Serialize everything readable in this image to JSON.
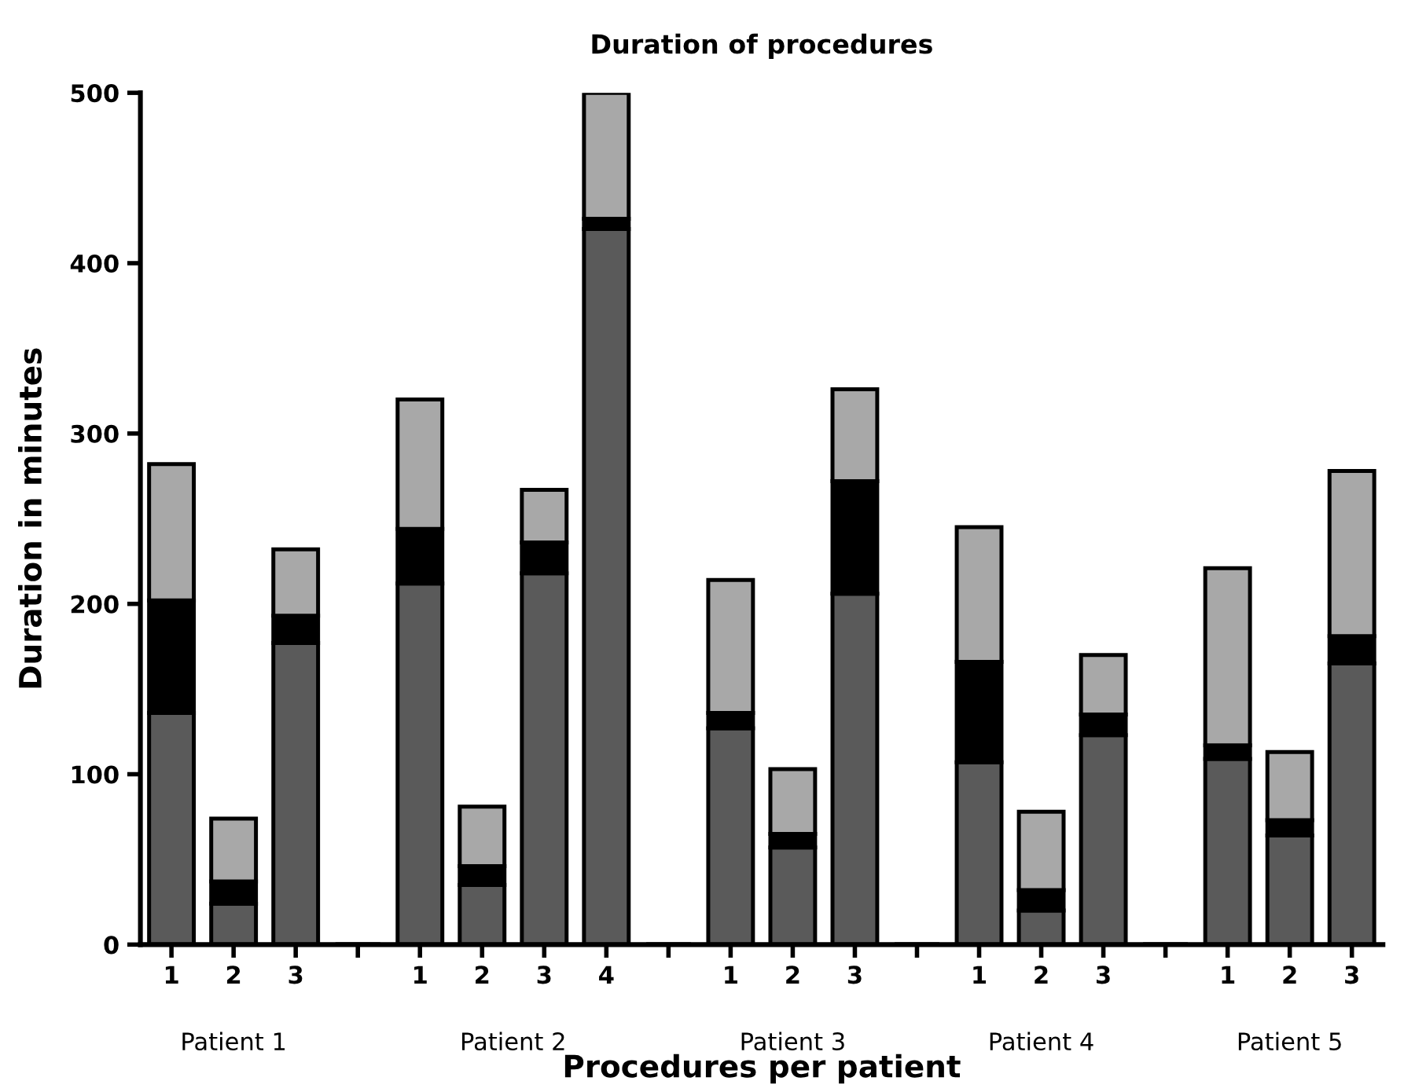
{
  "chart_data": {
    "type": "bar",
    "stacked": true,
    "title": "Duration of procedures",
    "xlabel": "Procedures per patient",
    "ylabel": "Duration in minutes",
    "categories": [
      "1",
      "2",
      "3",
      null,
      "1",
      "2",
      "3",
      "4",
      null,
      "1",
      "2",
      "3",
      null,
      "1",
      "2",
      "3",
      null,
      "1",
      "2",
      "3"
    ],
    "series": [
      {
        "color": "#5a5a5a",
        "values": [
          136,
          24,
          177,
          null,
          212,
          35,
          218,
          420,
          null,
          127,
          57,
          206,
          null,
          107,
          20,
          123,
          null,
          109,
          64,
          165
        ]
      },
      {
        "color": "#000000",
        "values": [
          66,
          13,
          16,
          null,
          32,
          11,
          18,
          6,
          null,
          9,
          8,
          66,
          null,
          59,
          12,
          12,
          null,
          8,
          9,
          16
        ]
      },
      {
        "color": "#a8a8a8",
        "values": [
          80,
          37,
          39,
          null,
          76,
          35,
          31,
          74,
          null,
          78,
          38,
          54,
          null,
          79,
          46,
          35,
          null,
          104,
          40,
          97
        ]
      }
    ],
    "ylim": [
      0,
      500
    ],
    "yticks": [
      0,
      100,
      200,
      300,
      400,
      500
    ],
    "grid": false,
    "legend": false,
    "annotations": [
      "Patient 1",
      "Patient 2",
      "Patient 3",
      "Patient 4",
      "Patient 5"
    ]
  }
}
